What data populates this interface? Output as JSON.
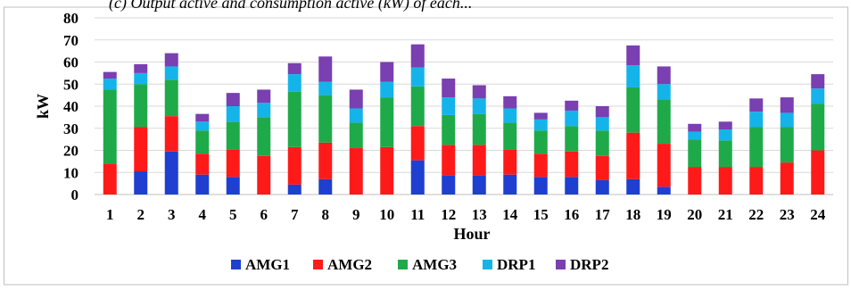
{
  "caption": "(c) Output active and consumption active (kW) of each...",
  "colors": {
    "AMG1": "#1f3fd1",
    "AMG2": "#ff1a1a",
    "AMG3": "#1faa4a",
    "DRP1": "#14b4ea",
    "DRP2": "#7a3fb0",
    "grid": "#d9d9d9",
    "frame": "#bfbfbf"
  },
  "chart_data": {
    "type": "bar",
    "stacked": true,
    "title": "",
    "xlabel": "Hour",
    "ylabel": "kW",
    "ylim": [
      0,
      80
    ],
    "yticks": [
      0,
      10,
      20,
      30,
      40,
      50,
      60,
      70,
      80
    ],
    "grid": true,
    "legend": "bottom",
    "categories": [
      "1",
      "2",
      "3",
      "4",
      "5",
      "6",
      "7",
      "8",
      "9",
      "10",
      "11",
      "12",
      "13",
      "14",
      "15",
      "16",
      "17",
      "18",
      "19",
      "20",
      "21",
      "22",
      "23",
      "24"
    ],
    "series": [
      {
        "name": "AMG1",
        "values": [
          0,
          10.5,
          19.5,
          9,
          8,
          0,
          4.5,
          7,
          0,
          0,
          15.5,
          8.5,
          8.5,
          9,
          8,
          8,
          6.5,
          7,
          3.5,
          0,
          0,
          0,
          0,
          0
        ]
      },
      {
        "name": "AMG2",
        "values": [
          14,
          20,
          16,
          9.5,
          12.5,
          17.5,
          17,
          16.5,
          21,
          21.5,
          15.5,
          14,
          14,
          11.5,
          10.5,
          11.5,
          11,
          21,
          19.5,
          12.5,
          12.5,
          12.5,
          14.5,
          20
        ]
      },
      {
        "name": "AMG3",
        "values": [
          33.5,
          19.5,
          16.5,
          10.5,
          12.5,
          17.5,
          25,
          21.5,
          11.5,
          22.5,
          18,
          13.5,
          14,
          12,
          10.5,
          11.5,
          11.5,
          20.5,
          20,
          12.5,
          12,
          18,
          16,
          21
        ]
      },
      {
        "name": "DRP1",
        "values": [
          5,
          5,
          6,
          4,
          7,
          6.5,
          8,
          6,
          6.5,
          7,
          8.5,
          8,
          7,
          6.5,
          5,
          7,
          6,
          10,
          7,
          3.5,
          5,
          7,
          6.5,
          7
        ]
      },
      {
        "name": "DRP2",
        "values": [
          3,
          4,
          6,
          3.5,
          6,
          6,
          5,
          11.5,
          8.5,
          9,
          10.5,
          8.5,
          6,
          5.5,
          3,
          4.5,
          5,
          9,
          8,
          3.5,
          3.5,
          6,
          7,
          6.5
        ]
      }
    ]
  }
}
